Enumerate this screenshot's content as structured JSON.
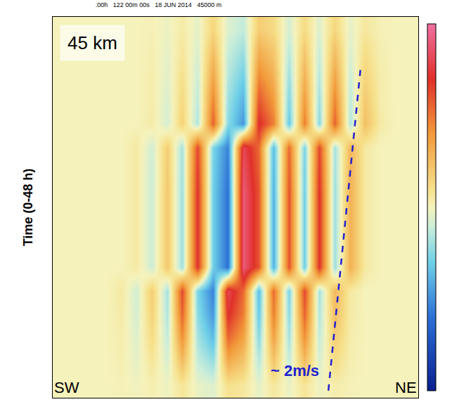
{
  "chart_data": {
    "type": "heatmap",
    "title": ".00h   122 00m 00s   18 JUN 2014   45000 m",
    "y_label": "Time (0-48 h)",
    "panel_label": "45 km",
    "left_label": "SW",
    "right_label": "NE",
    "tick_labels": false,
    "xlim": [
      -0.5,
      23.5
    ],
    "ylim": [
      0,
      48
    ],
    "zlim": [
      -1,
      1
    ],
    "x": [
      0,
      1,
      2,
      3,
      4,
      5,
      6,
      7,
      8,
      9,
      10,
      11,
      12,
      13,
      14,
      15,
      16,
      17,
      18,
      19,
      20,
      21,
      22,
      23
    ],
    "y": [
      1.5,
      4.5,
      7.5,
      10.5,
      13.5,
      16.5,
      19.5,
      22.5,
      25.5,
      28.5,
      31.5,
      34.5,
      37.5,
      40.5,
      43.5,
      46.5
    ],
    "z": [
      [
        0,
        0,
        0,
        0,
        0.01,
        -0.01,
        0.02,
        -0.02,
        0.07,
        -0.03,
        -0.06,
        0.09,
        0.06,
        -0.04,
        0.06,
        -0.03,
        0.07,
        -0.02,
        0.03,
        0.01,
        0,
        0,
        0,
        0
      ],
      [
        0,
        0,
        0,
        0,
        0.02,
        -0.04,
        0.07,
        -0.07,
        0.25,
        -0.11,
        -0.21,
        0.32,
        0.21,
        -0.14,
        0.21,
        -0.11,
        0.25,
        -0.07,
        0.11,
        0.02,
        0,
        0,
        0,
        0
      ],
      [
        0,
        0,
        0,
        0,
        0.03,
        -0.06,
        0.12,
        -0.12,
        0.42,
        -0.18,
        -0.36,
        0.54,
        0.36,
        -0.24,
        0.36,
        -0.18,
        0.42,
        -0.12,
        0.18,
        0.03,
        0,
        0,
        0,
        0
      ],
      [
        0,
        0,
        0,
        0,
        0.04,
        -0.08,
        0.16,
        -0.16,
        0.56,
        -0.24,
        -0.48,
        0.72,
        0.48,
        -0.32,
        0.48,
        -0.24,
        0.56,
        -0.16,
        0.24,
        0.04,
        0,
        0,
        0,
        0
      ],
      [
        0,
        0,
        0,
        0,
        0.05,
        -0.09,
        0.18,
        -0.18,
        0.63,
        -0.27,
        -0.54,
        0.81,
        0.54,
        -0.36,
        0.54,
        -0.27,
        0.63,
        -0.18,
        0.27,
        0.05,
        0,
        0,
        0,
        0
      ],
      [
        0,
        0,
        0,
        0,
        0,
        0.05,
        -0.1,
        0.2,
        -0.2,
        0.7,
        -0.3,
        -0.6,
        0.9,
        0.6,
        -0.4,
        0.6,
        -0.3,
        0.7,
        -0.2,
        0.3,
        0.05,
        0,
        0,
        0
      ],
      [
        0,
        0,
        0,
        0,
        0,
        0.05,
        -0.1,
        0.2,
        -0.2,
        0.7,
        -0.3,
        -0.6,
        0.9,
        0.6,
        -0.4,
        0.6,
        -0.3,
        0.7,
        -0.2,
        0.3,
        0.05,
        0,
        0,
        0
      ],
      [
        0,
        0,
        0,
        0,
        0,
        0.05,
        -0.1,
        0.2,
        -0.2,
        0.7,
        -0.3,
        -0.6,
        0.9,
        0.6,
        -0.4,
        0.6,
        -0.3,
        0.7,
        -0.2,
        0.3,
        0.05,
        0,
        0,
        0
      ],
      [
        0,
        0,
        0,
        0,
        0,
        0.05,
        -0.1,
        0.2,
        -0.2,
        0.7,
        -0.3,
        -0.6,
        0.9,
        0.6,
        -0.4,
        0.6,
        -0.3,
        0.7,
        -0.2,
        0.3,
        0.05,
        0,
        0,
        0
      ],
      [
        0,
        0,
        0,
        0,
        0,
        0.05,
        -0.1,
        0.19,
        -0.19,
        0.67,
        -0.29,
        -0.57,
        0.86,
        0.57,
        -0.38,
        0.57,
        -0.29,
        0.67,
        -0.19,
        0.29,
        0.05,
        0,
        0,
        0
      ],
      [
        0,
        0,
        0,
        0,
        0,
        0.05,
        -0.09,
        0.18,
        -0.18,
        0.63,
        -0.27,
        -0.54,
        0.81,
        0.54,
        -0.36,
        0.54,
        -0.27,
        0.63,
        -0.18,
        0.27,
        0.05,
        0,
        0,
        0
      ],
      [
        0,
        0,
        0,
        0,
        0,
        0,
        0.04,
        -0.08,
        0.16,
        -0.16,
        0.56,
        -0.24,
        -0.48,
        0.72,
        0.48,
        -0.32,
        0.48,
        -0.24,
        0.56,
        -0.16,
        0.24,
        0.04,
        0,
        0
      ],
      [
        0,
        0,
        0,
        0,
        0,
        0,
        0.03,
        -0.07,
        0.13,
        -0.13,
        0.46,
        -0.2,
        -0.39,
        0.59,
        0.39,
        -0.26,
        0.39,
        -0.2,
        0.46,
        -0.13,
        0.2,
        0.03,
        0,
        0
      ],
      [
        0,
        0,
        0,
        0,
        0,
        0,
        0.03,
        -0.05,
        0.1,
        -0.1,
        0.35,
        -0.15,
        -0.3,
        0.45,
        0.3,
        -0.2,
        0.3,
        -0.15,
        0.35,
        -0.1,
        0.15,
        0.03,
        0,
        0
      ],
      [
        0,
        0,
        0,
        0,
        0,
        0,
        0.02,
        -0.04,
        0.07,
        -0.07,
        0.25,
        -0.11,
        -0.21,
        0.32,
        0.21,
        -0.14,
        0.21,
        -0.11,
        0.25,
        -0.07,
        0.11,
        0.02,
        0,
        0
      ],
      [
        0,
        0,
        0,
        0,
        0,
        0,
        0.01,
        -0.02,
        0.04,
        -0.04,
        0.14,
        -0.06,
        -0.12,
        0.18,
        0.12,
        -0.08,
        0.12,
        -0.06,
        0.14,
        -0.04,
        0.06,
        0.01,
        0,
        0
      ]
    ],
    "guide": {
      "label": "~ 2m/s",
      "x": [
        17.6,
        19.7
      ],
      "y": [
        0.9,
        41.3
      ],
      "color": "#2222cc",
      "line_style": "dash"
    }
  }
}
